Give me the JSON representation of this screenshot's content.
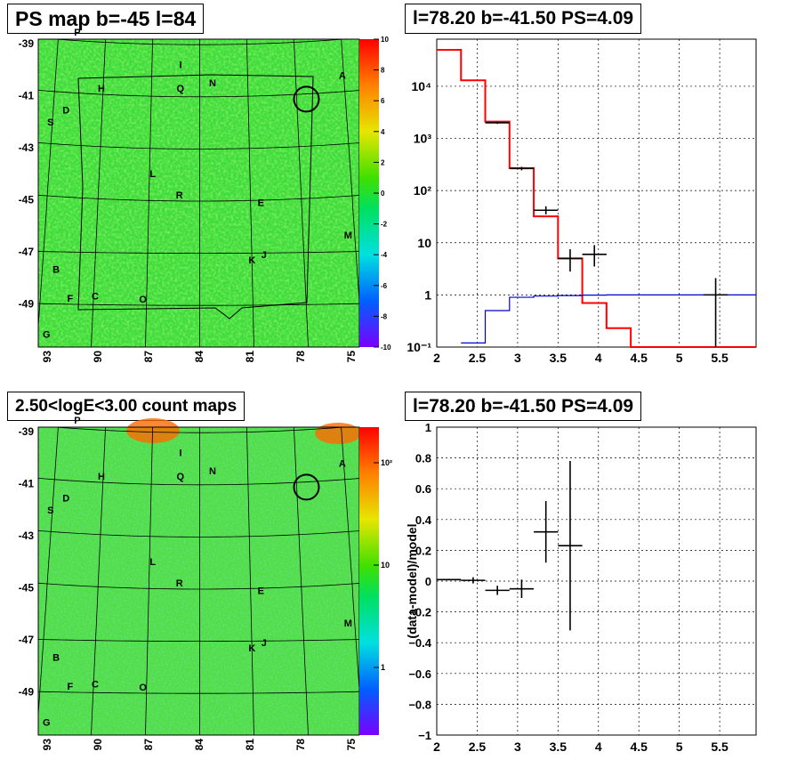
{
  "panels": {
    "ps_map_title": "PS map b=-45 l=84",
    "spectrum_title": "l=78.20 b=-41.50 PS=4.09",
    "count_map_title": "2.50<logE<3.00 count maps",
    "residual_title": "l=78.20 b=-41.50 PS=4.09"
  },
  "maps": {
    "lat_labels": [
      "-39",
      "-41",
      "-43",
      "-45",
      "-47",
      "-49"
    ],
    "lon_labels": [
      "93",
      "90",
      "87",
      "84",
      "81",
      "78",
      "75"
    ],
    "sources": [
      {
        "name": "P",
        "lon": 91.8,
        "lat": -38.8
      },
      {
        "name": "I",
        "lon": 85.2,
        "lat": -39.9
      },
      {
        "name": "N",
        "lon": 83.2,
        "lat": -40.6
      },
      {
        "name": "A",
        "lon": 75.1,
        "lat": -40.5
      },
      {
        "name": "H",
        "lon": 90.1,
        "lat": -40.9
      },
      {
        "name": "Q",
        "lon": 85.2,
        "lat": -40.8
      },
      {
        "name": "D",
        "lon": 92.2,
        "lat": -41.8
      },
      {
        "name": "S",
        "lon": 93.1,
        "lat": -42.3
      },
      {
        "name": "L",
        "lon": 86.8,
        "lat": -44.1
      },
      {
        "name": "R",
        "lon": 85.2,
        "lat": -44.9
      },
      {
        "name": "E",
        "lon": 80.4,
        "lat": -45.2
      },
      {
        "name": "M",
        "lon": 75.4,
        "lat": -46.5
      },
      {
        "name": "K",
        "lon": 81.0,
        "lat": -47.4
      },
      {
        "name": "J",
        "lon": 80.3,
        "lat": -47.2
      },
      {
        "name": "B",
        "lon": 92.2,
        "lat": -47.8
      },
      {
        "name": "F",
        "lon": 91.3,
        "lat": -48.9
      },
      {
        "name": "C",
        "lon": 89.9,
        "lat": -48.8
      },
      {
        "name": "O",
        "lon": 87.2,
        "lat": -48.9
      },
      {
        "name": "G",
        "lon": 92.5,
        "lat": -50.3
      }
    ],
    "circle_marker": {
      "lon": 77.4,
      "lat": -41.2
    },
    "ps_colorbar": {
      "min": -10,
      "max": 10,
      "ticks": [
        "10",
        "8",
        "6",
        "4",
        "2",
        "0",
        "-2",
        "-4",
        "-6",
        "-8",
        "-10"
      ]
    },
    "count_colorbar": {
      "ticks": [
        "10²",
        "10",
        "1"
      ]
    }
  },
  "chart_data": [
    {
      "type": "line",
      "title": "l=78.20 b=-41.50 PS=4.09",
      "xlim": [
        2.0,
        5.95
      ],
      "ylim": [
        0.1,
        80000
      ],
      "yscale": "log",
      "x_ticks": [
        "2",
        "2.5",
        "3",
        "3.5",
        "4",
        "4.5",
        "5",
        "5.5"
      ],
      "y_ticks": [
        "10⁻¹",
        "1",
        "10",
        "10²",
        "10³",
        "10⁴"
      ],
      "grid": true,
      "series": [
        {
          "color": "#ff0000",
          "steps": [
            [
              2.0,
              2.3,
              50000
            ],
            [
              2.3,
              2.6,
              13000
            ],
            [
              2.6,
              2.9,
              2100
            ],
            [
              2.9,
              3.2,
              270
            ],
            [
              3.2,
              3.5,
              32
            ],
            [
              3.5,
              3.8,
              5
            ],
            [
              3.8,
              4.1,
              0.7
            ],
            [
              4.1,
              4.4,
              0.23
            ],
            [
              4.4,
              5.95,
              0.1
            ]
          ]
        },
        {
          "color": "#0000cc",
          "steps": [
            [
              2.3,
              2.6,
              0.12
            ],
            [
              2.6,
              2.9,
              0.5
            ],
            [
              2.9,
              3.2,
              0.9
            ],
            [
              3.2,
              3.5,
              0.95
            ],
            [
              3.5,
              3.8,
              0.97
            ],
            [
              3.8,
              4.1,
              0.99
            ],
            [
              4.1,
              5.95,
              1.0
            ]
          ]
        },
        {
          "color": "#000000",
          "points": [
            {
              "x": 2.75,
              "y": 2000,
              "xerr": 0.15,
              "ylo": 1900,
              "yhi": 2100
            },
            {
              "x": 3.05,
              "y": 265,
              "xerr": 0.15,
              "ylo": 245,
              "yhi": 285
            },
            {
              "x": 3.35,
              "y": 42,
              "xerr": 0.15,
              "ylo": 35,
              "yhi": 50
            },
            {
              "x": 3.65,
              "y": 5,
              "xerr": 0.15,
              "ylo": 2.8,
              "yhi": 7.5
            },
            {
              "x": 3.95,
              "y": 6,
              "xerr": 0.15,
              "ylo": 3.5,
              "yhi": 9
            },
            {
              "x": 5.45,
              "y": 1,
              "xerr": 0.15,
              "ylo": 0.1,
              "yhi": 2.1
            }
          ]
        }
      ]
    },
    {
      "type": "scatter",
      "title": "l=78.20 b=-41.50 PS=4.09",
      "ylabel": "(data-model)/model",
      "xlim": [
        2.0,
        5.95
      ],
      "ylim": [
        -1.0,
        1.0
      ],
      "x_ticks": [
        "2",
        "2.5",
        "3",
        "3.5",
        "4",
        "4.5",
        "5",
        "5.5"
      ],
      "y_ticks": [
        "1",
        "0.8",
        "0.6",
        "0.4",
        "0.2",
        "0",
        "−0.2",
        "−0.4",
        "−0.6",
        "−0.8",
        "−1"
      ],
      "grid": true,
      "points": [
        {
          "x": 2.15,
          "y": 0.01,
          "xerr": 0.15,
          "yerr": 0.005
        },
        {
          "x": 2.45,
          "y": 0.005,
          "xerr": 0.15,
          "yerr": 0.02
        },
        {
          "x": 2.75,
          "y": -0.06,
          "xerr": 0.15,
          "yerr": 0.03
        },
        {
          "x": 3.05,
          "y": -0.05,
          "xerr": 0.15,
          "yerr": 0.06
        },
        {
          "x": 3.35,
          "y": 0.32,
          "xerr": 0.15,
          "yerr": 0.2
        },
        {
          "x": 3.65,
          "y": 0.23,
          "xerr": 0.15,
          "ylo": -0.32,
          "yhi": 0.78
        }
      ]
    }
  ]
}
